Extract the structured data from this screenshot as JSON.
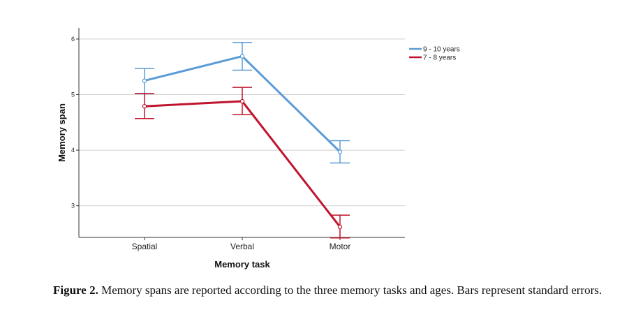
{
  "chart_data": {
    "type": "line",
    "xlabel": "Memory task",
    "ylabel": "Memory span",
    "categories": [
      "Spatial",
      "Verbal",
      "Motor"
    ],
    "yticks": [
      3,
      4,
      5,
      6
    ],
    "ylim": [
      2.43,
      6.2
    ],
    "grid": true,
    "legend_position": "top-right",
    "series": [
      {
        "name": "9 - 10 years",
        "color": "#5b9bd5",
        "values": [
          5.25,
          5.69,
          3.97
        ],
        "err_low": [
          5.02,
          5.44,
          3.77
        ],
        "err_high": [
          5.47,
          5.94,
          4.17
        ]
      },
      {
        "name": "7 - 8 years",
        "color": "#c0142d",
        "values": [
          4.79,
          4.88,
          2.62
        ],
        "err_low": [
          4.57,
          4.64,
          2.42
        ],
        "err_high": [
          5.02,
          5.13,
          2.83
        ]
      }
    ]
  },
  "caption": {
    "label": "Figure 2.",
    "text": " Memory spans are reported according to the three memory tasks and ages. Bars represent standard errors."
  }
}
